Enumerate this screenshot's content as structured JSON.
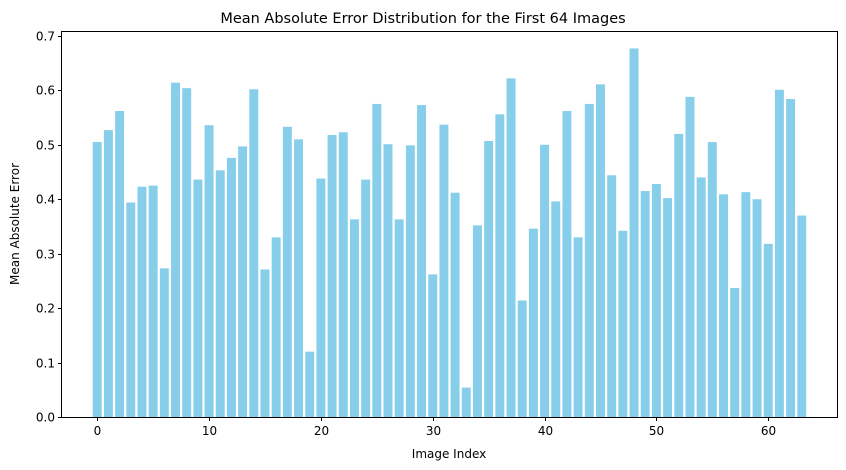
{
  "chart_data": {
    "type": "bar",
    "title": "Mean Absolute Error Distribution for the First 64 Images",
    "xlabel": "Image Index",
    "ylabel": "Mean Absolute Error",
    "xlim": [
      -3.15,
      66.15
    ],
    "ylim": [
      0,
      0.709
    ],
    "xticks": [
      0,
      10,
      20,
      30,
      40,
      50,
      60
    ],
    "xtick_labels": [
      "0",
      "10",
      "20",
      "30",
      "40",
      "50",
      "60"
    ],
    "yticks": [
      0.0,
      0.1,
      0.2,
      0.3,
      0.4,
      0.5,
      0.6,
      0.7
    ],
    "ytick_labels": [
      "0.0",
      "0.1",
      "0.2",
      "0.3",
      "0.4",
      "0.5",
      "0.6",
      "0.7"
    ],
    "grid": false,
    "color": "#87ceeb",
    "x": [
      0,
      1,
      2,
      3,
      4,
      5,
      6,
      7,
      8,
      9,
      10,
      11,
      12,
      13,
      14,
      15,
      16,
      17,
      18,
      19,
      20,
      21,
      22,
      23,
      24,
      25,
      26,
      27,
      28,
      29,
      30,
      31,
      32,
      33,
      34,
      35,
      36,
      37,
      38,
      39,
      40,
      41,
      42,
      43,
      44,
      45,
      46,
      47,
      48,
      49,
      50,
      51,
      52,
      53,
      54,
      55,
      56,
      57,
      58,
      59,
      60,
      61,
      62,
      63
    ],
    "values": [
      0.505,
      0.527,
      0.562,
      0.394,
      0.423,
      0.425,
      0.273,
      0.614,
      0.604,
      0.436,
      0.536,
      0.453,
      0.476,
      0.497,
      0.602,
      0.271,
      0.33,
      0.533,
      0.51,
      0.12,
      0.438,
      0.518,
      0.523,
      0.363,
      0.436,
      0.575,
      0.501,
      0.363,
      0.499,
      0.573,
      0.262,
      0.537,
      0.412,
      0.054,
      0.352,
      0.507,
      0.556,
      0.622,
      0.214,
      0.346,
      0.5,
      0.396,
      0.562,
      0.33,
      0.575,
      0.611,
      0.444,
      0.342,
      0.677,
      0.415,
      0.428,
      0.402,
      0.52,
      0.588,
      0.44,
      0.505,
      0.409,
      0.237,
      0.413,
      0.4,
      0.318,
      0.601,
      0.584,
      0.37
    ]
  }
}
